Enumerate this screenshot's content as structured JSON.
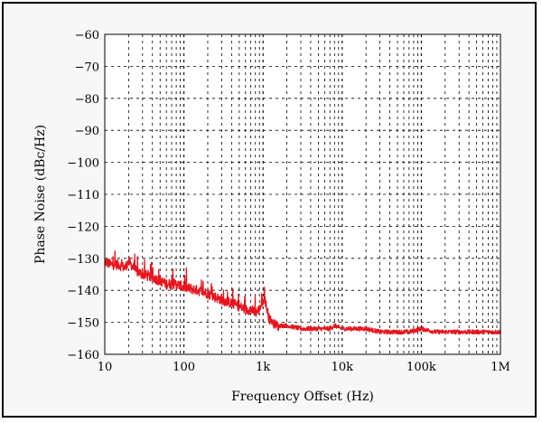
{
  "chart_data": {
    "type": "line",
    "title": "",
    "xlabel": "Frequency Offset (Hz)",
    "ylabel": "Phase Noise (dBc/Hz)",
    "x_scale": "log",
    "xlim": [
      10,
      1000000
    ],
    "ylim": [
      -160,
      -60
    ],
    "grid": true,
    "x_ticks": [
      {
        "value": 10,
        "label": "10"
      },
      {
        "value": 100,
        "label": "100"
      },
      {
        "value": 1000,
        "label": "1k"
      },
      {
        "value": 10000,
        "label": "10k"
      },
      {
        "value": 100000,
        "label": "100k"
      },
      {
        "value": 1000000,
        "label": "1M"
      }
    ],
    "y_ticks": [
      {
        "value": -60,
        "label": "−60"
      },
      {
        "value": -70,
        "label": "−70"
      },
      {
        "value": -80,
        "label": "−80"
      },
      {
        "value": -90,
        "label": "−90"
      },
      {
        "value": -100,
        "label": "−100"
      },
      {
        "value": -110,
        "label": "−110"
      },
      {
        "value": -120,
        "label": "−120"
      },
      {
        "value": -130,
        "label": "−130"
      },
      {
        "value": -140,
        "label": "−140"
      },
      {
        "value": -150,
        "label": "−150"
      },
      {
        "value": -160,
        "label": "−160"
      }
    ],
    "series": [
      {
        "color": "#e8141c",
        "x": [
          10,
          12,
          15,
          18,
          20,
          25,
          30,
          40,
          50,
          60,
          80,
          100,
          150,
          200,
          300,
          400,
          500,
          600,
          700,
          800,
          900,
          1000,
          1050,
          1100,
          1200,
          1300,
          1500,
          2000,
          3000,
          5000,
          7000,
          8000,
          10000,
          15000,
          20000,
          30000,
          40000,
          50000,
          70000,
          100000,
          150000,
          200000,
          300000,
          500000,
          700000,
          1000000
        ],
        "y": [
          -131,
          -132,
          -132,
          -133,
          -131,
          -134,
          -135,
          -136,
          -137,
          -138,
          -138,
          -139,
          -140,
          -141,
          -143,
          -144,
          -145,
          -146,
          -146,
          -147,
          -146,
          -143,
          -142,
          -145,
          -149,
          -150,
          -151,
          -151,
          -152,
          -152,
          -152,
          -151,
          -152,
          -152,
          -152,
          -153,
          -153,
          -153,
          -153,
          -152,
          -153,
          -153,
          -153,
          -153,
          -153,
          -153
        ]
      }
    ]
  }
}
